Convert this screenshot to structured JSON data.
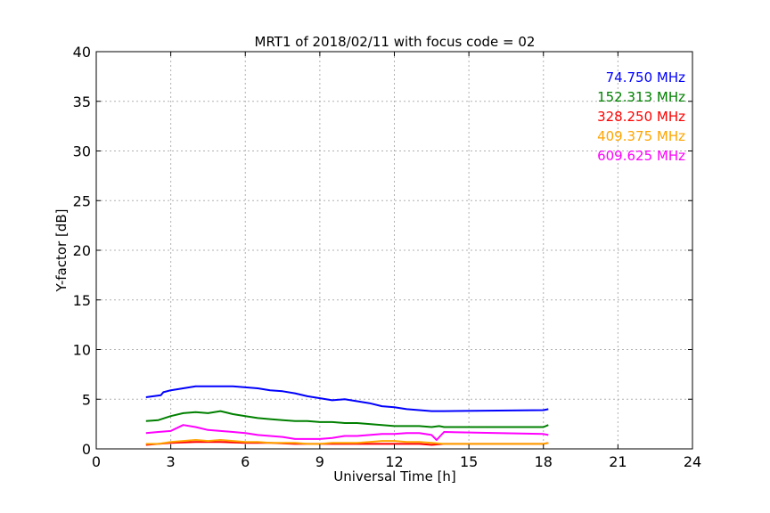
{
  "chart_data": {
    "type": "line",
    "title": "MRT1 of 2018/02/11 with focus code = 02",
    "xlabel": "Universal Time [h]",
    "ylabel": "Y-factor [dB]",
    "xlim": [
      0,
      24
    ],
    "ylim": [
      0,
      40
    ],
    "xticks": [
      0,
      3,
      6,
      9,
      12,
      15,
      18,
      21,
      24
    ],
    "yticks": [
      0,
      5,
      10,
      15,
      20,
      25,
      30,
      35,
      40
    ],
    "grid": true,
    "legend_position": "top-right",
    "series": [
      {
        "name": "74.750 MHz",
        "color": "#0000ff",
        "x": [
          2.0,
          2.3,
          2.6,
          2.7,
          3.0,
          3.5,
          4.0,
          4.5,
          5.0,
          5.5,
          6.0,
          6.5,
          7.0,
          7.5,
          8.0,
          8.5,
          9.0,
          9.5,
          10.0,
          10.5,
          11.0,
          11.5,
          12.0,
          12.5,
          13.0,
          13.5,
          14.0,
          18.0,
          18.2
        ],
        "y": [
          5.2,
          5.3,
          5.4,
          5.7,
          5.9,
          6.1,
          6.3,
          6.3,
          6.3,
          6.3,
          6.2,
          6.1,
          5.9,
          5.8,
          5.6,
          5.3,
          5.1,
          4.9,
          5.0,
          4.8,
          4.6,
          4.3,
          4.2,
          4.0,
          3.9,
          3.8,
          3.8,
          3.9,
          4.0
        ]
      },
      {
        "name": "152.313 MHz",
        "color": "#008000",
        "x": [
          2.0,
          2.5,
          3.0,
          3.5,
          4.0,
          4.5,
          5.0,
          5.5,
          6.0,
          6.5,
          7.0,
          7.5,
          8.0,
          8.5,
          9.0,
          9.5,
          10.0,
          10.5,
          11.0,
          11.5,
          12.0,
          12.5,
          13.0,
          13.5,
          13.8,
          14.0,
          18.0,
          18.2
        ],
        "y": [
          2.8,
          2.9,
          3.3,
          3.6,
          3.7,
          3.6,
          3.8,
          3.5,
          3.3,
          3.1,
          3.0,
          2.9,
          2.8,
          2.8,
          2.7,
          2.7,
          2.6,
          2.6,
          2.5,
          2.4,
          2.3,
          2.3,
          2.3,
          2.2,
          2.3,
          2.2,
          2.2,
          2.4
        ]
      },
      {
        "name": "328.250 MHz",
        "color": "#ff0000",
        "x": [
          2.0,
          2.5,
          3.0,
          4.0,
          5.0,
          6.0,
          7.0,
          8.0,
          9.0,
          10.0,
          11.0,
          12.0,
          13.0,
          13.5,
          14.0,
          18.0,
          18.2
        ],
        "y": [
          0.4,
          0.5,
          0.6,
          0.7,
          0.7,
          0.6,
          0.6,
          0.5,
          0.5,
          0.5,
          0.5,
          0.5,
          0.5,
          0.4,
          0.5,
          0.5,
          0.6
        ]
      },
      {
        "name": "409.375 MHz",
        "color": "#ffa500",
        "x": [
          2.0,
          2.5,
          3.0,
          3.5,
          4.0,
          4.5,
          5.0,
          5.5,
          6.0,
          6.5,
          7.0,
          7.5,
          8.0,
          8.5,
          9.0,
          9.5,
          10.0,
          10.5,
          11.0,
          11.5,
          12.0,
          12.5,
          13.0,
          13.5,
          14.0,
          18.0,
          18.2
        ],
        "y": [
          0.5,
          0.5,
          0.7,
          0.8,
          0.9,
          0.8,
          0.9,
          0.8,
          0.7,
          0.7,
          0.6,
          0.6,
          0.6,
          0.5,
          0.5,
          0.6,
          0.6,
          0.6,
          0.7,
          0.8,
          0.8,
          0.7,
          0.7,
          0.6,
          0.5,
          0.5,
          0.6
        ]
      },
      {
        "name": "609.625 MHz",
        "color": "#ff00ff",
        "x": [
          2.0,
          2.5,
          3.0,
          3.5,
          4.0,
          4.5,
          5.0,
          5.5,
          6.0,
          6.5,
          7.0,
          7.5,
          8.0,
          8.5,
          9.0,
          9.5,
          10.0,
          10.5,
          11.0,
          11.5,
          12.0,
          12.5,
          13.0,
          13.5,
          13.7,
          14.0,
          18.0,
          18.2
        ],
        "y": [
          1.6,
          1.7,
          1.8,
          2.4,
          2.2,
          1.9,
          1.8,
          1.7,
          1.6,
          1.4,
          1.3,
          1.2,
          1.0,
          1.0,
          1.0,
          1.1,
          1.3,
          1.3,
          1.4,
          1.5,
          1.5,
          1.6,
          1.6,
          1.4,
          0.9,
          1.7,
          1.5,
          1.4
        ]
      }
    ]
  }
}
